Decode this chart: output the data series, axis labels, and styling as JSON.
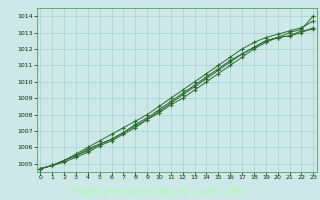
{
  "x": [
    0,
    1,
    2,
    3,
    4,
    5,
    6,
    7,
    8,
    9,
    10,
    11,
    12,
    13,
    14,
    15,
    16,
    17,
    18,
    19,
    20,
    21,
    22,
    23
  ],
  "line1": [
    1004.7,
    1004.9,
    1005.2,
    1005.5,
    1005.9,
    1006.2,
    1006.5,
    1006.9,
    1007.3,
    1007.7,
    1008.1,
    1008.6,
    1009.0,
    1009.5,
    1010.0,
    1010.5,
    1011.0,
    1011.5,
    1012.0,
    1012.4,
    1012.7,
    1013.0,
    1013.2,
    1014.0
  ],
  "line2": [
    1004.7,
    1004.9,
    1005.1,
    1005.4,
    1005.7,
    1006.1,
    1006.4,
    1006.8,
    1007.2,
    1007.7,
    1008.2,
    1008.7,
    1009.2,
    1009.7,
    1010.2,
    1010.7,
    1011.2,
    1011.7,
    1012.1,
    1012.5,
    1012.7,
    1012.8,
    1013.0,
    1013.3
  ],
  "line3": [
    1004.7,
    1004.9,
    1005.2,
    1005.5,
    1005.8,
    1006.2,
    1006.5,
    1006.9,
    1007.4,
    1007.8,
    1008.3,
    1008.8,
    1009.3,
    1009.8,
    1010.3,
    1010.8,
    1011.3,
    1011.7,
    1012.1,
    1012.5,
    1012.7,
    1012.8,
    1013.1,
    1013.2
  ],
  "line4": [
    1004.7,
    1004.9,
    1005.2,
    1005.6,
    1006.0,
    1006.4,
    1006.8,
    1007.2,
    1007.6,
    1008.0,
    1008.5,
    1009.0,
    1009.5,
    1010.0,
    1010.5,
    1011.0,
    1011.5,
    1012.0,
    1012.4,
    1012.7,
    1012.9,
    1013.1,
    1013.3,
    1013.7
  ],
  "bg_color": "#cce8e8",
  "grid_color": "#aacfcf",
  "line_color": "#2d6a2d",
  "xlabel": "Graphe pression niveau de la mer (hPa)",
  "xlabel_bg": "#005500",
  "xlabel_fg": "#aaffaa",
  "ylim": [
    1004.5,
    1014.5
  ],
  "xlim": [
    -0.3,
    23.3
  ],
  "yticks": [
    1005,
    1006,
    1007,
    1008,
    1009,
    1010,
    1011,
    1012,
    1013,
    1014
  ],
  "xticks": [
    0,
    1,
    2,
    3,
    4,
    5,
    6,
    7,
    8,
    9,
    10,
    11,
    12,
    13,
    14,
    15,
    16,
    17,
    18,
    19,
    20,
    21,
    22,
    23
  ]
}
